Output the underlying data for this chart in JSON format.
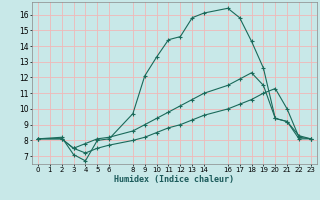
{
  "xlabel": "Humidex (Indice chaleur)",
  "background_color": "#c8e8e8",
  "grid_color": "#f0b8b8",
  "line_color": "#1a6a5a",
  "xlim": [
    -0.5,
    23.5
  ],
  "ylim": [
    6.5,
    16.8
  ],
  "xticks": [
    0,
    1,
    2,
    3,
    4,
    5,
    6,
    8,
    9,
    10,
    11,
    12,
    13,
    14,
    16,
    17,
    18,
    19,
    20,
    21,
    22,
    23
  ],
  "yticks": [
    7,
    8,
    9,
    10,
    11,
    12,
    13,
    14,
    15,
    16
  ],
  "curve1_x": [
    0,
    2,
    3,
    4,
    5,
    6,
    8,
    9,
    10,
    11,
    12,
    13,
    14,
    16,
    17,
    18,
    19,
    20,
    21,
    22,
    23
  ],
  "curve1_y": [
    8.1,
    8.2,
    7.1,
    6.7,
    8.0,
    8.1,
    9.7,
    12.1,
    13.3,
    14.4,
    14.6,
    15.8,
    16.1,
    16.4,
    15.8,
    14.3,
    12.6,
    9.4,
    9.2,
    8.1,
    8.1
  ],
  "curve2_x": [
    0,
    2,
    3,
    4,
    5,
    6,
    8,
    9,
    10,
    11,
    12,
    13,
    14,
    16,
    17,
    18,
    19,
    20,
    21,
    22,
    23
  ],
  "curve2_y": [
    8.1,
    8.1,
    7.5,
    7.8,
    8.1,
    8.2,
    8.6,
    9.0,
    9.4,
    9.8,
    10.2,
    10.6,
    11.0,
    11.5,
    11.9,
    12.3,
    11.5,
    9.4,
    9.2,
    8.3,
    8.1
  ],
  "curve3_x": [
    0,
    2,
    3,
    4,
    5,
    6,
    8,
    9,
    10,
    11,
    12,
    13,
    14,
    16,
    17,
    18,
    19,
    20,
    21,
    22,
    23
  ],
  "curve3_y": [
    8.1,
    8.1,
    7.5,
    7.2,
    7.5,
    7.7,
    8.0,
    8.2,
    8.5,
    8.8,
    9.0,
    9.3,
    9.6,
    10.0,
    10.3,
    10.6,
    11.0,
    11.3,
    10.0,
    8.2,
    8.1
  ]
}
